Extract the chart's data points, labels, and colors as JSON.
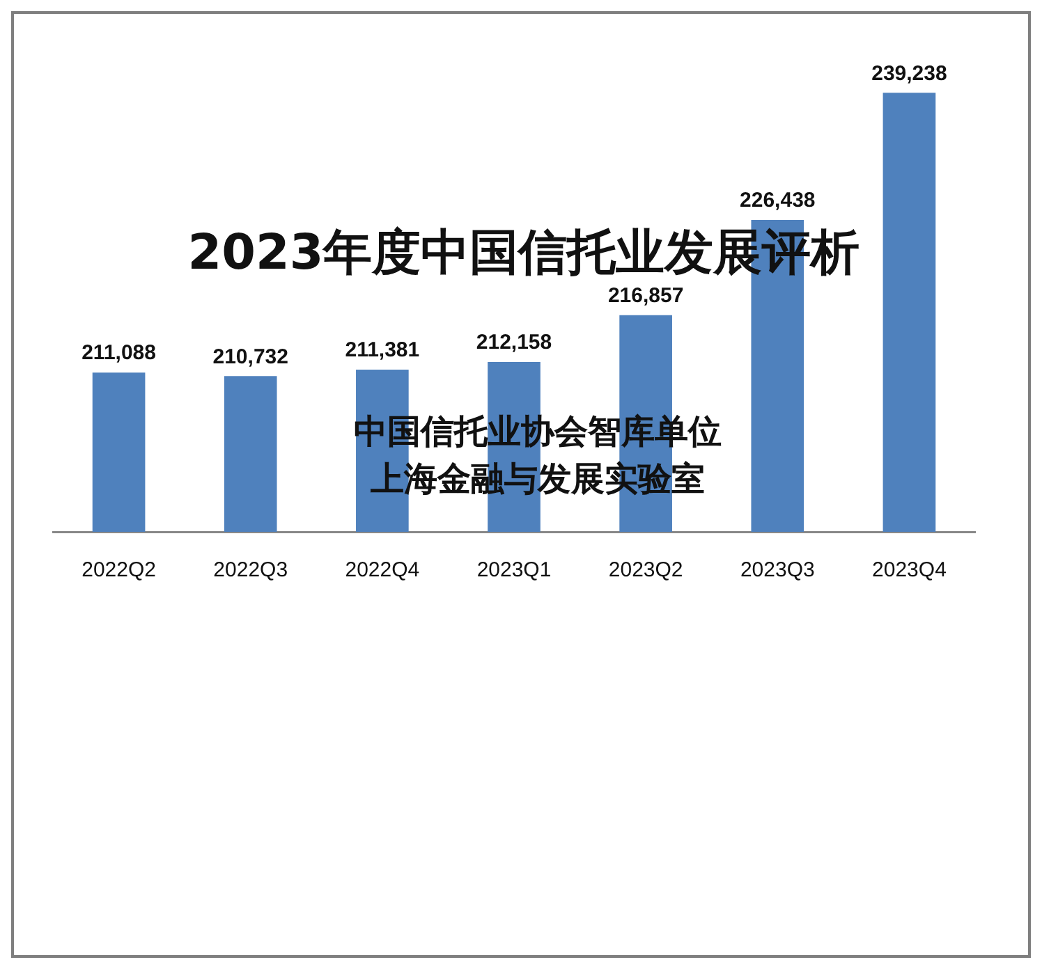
{
  "chart_data": {
    "type": "bar",
    "title": "2023年度中国信托业发展评析",
    "annotations": [
      "中国信托业协会智库单位",
      "上海金融与发展实验室"
    ],
    "categories": [
      "2022Q2",
      "2022Q3",
      "2022Q4",
      "2023Q1",
      "2023Q2",
      "2023Q3",
      "2023Q4"
    ],
    "values": [
      211088,
      210732,
      211381,
      212158,
      216857,
      226438,
      239238
    ],
    "value_labels": [
      "211,088",
      "210,732",
      "211,381",
      "212,158",
      "216,857",
      "226,438",
      "239,238"
    ],
    "color": "#4f81bd",
    "tick_labels": "x"
  }
}
